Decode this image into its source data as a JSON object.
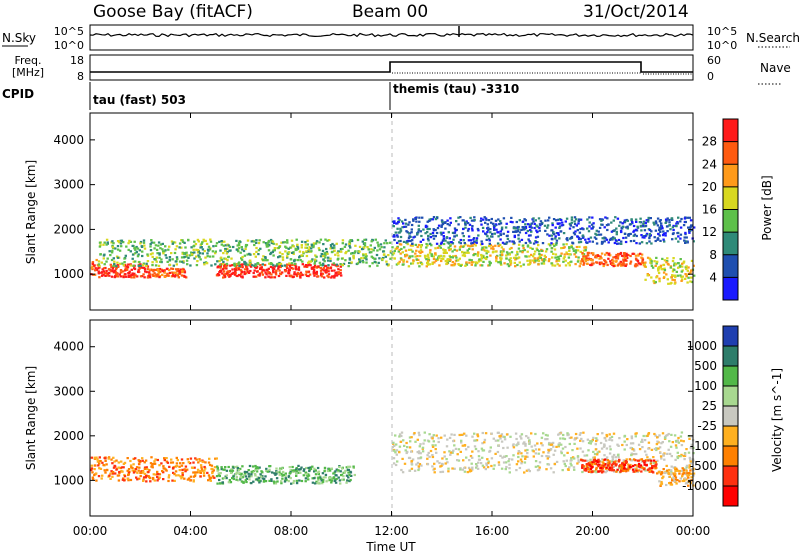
{
  "header": {
    "station": "Goose Bay (fitACF)",
    "beam": "Beam 00",
    "date": "31/Oct/2014"
  },
  "panels": {
    "sky_label": "N.Sky",
    "search_label": "N.Search",
    "freq_label_1": "Freq.",
    "freq_label_2": "[MHz]",
    "nave_label": "Nave",
    "cpid_label": "CPID",
    "sky_tick_hi": "10^5",
    "sky_tick_lo": "10^0",
    "freq_tick_hi": "18",
    "freq_tick_lo": "8",
    "nave_tick_hi": "60",
    "nave_tick_lo": "0",
    "cpid_1": "tau (fast) 503",
    "cpid_2": "themis (tau) -3310"
  },
  "chart_data": [
    {
      "type": "heatmap",
      "title": "",
      "ylabel": "Slant Range [km]",
      "ylim": [
        200,
        4600
      ],
      "yticks": [
        "1000",
        "2000",
        "3000",
        "4000"
      ],
      "colorbar_label": "Power [dB]",
      "colorbar_ticks": [
        "4",
        "8",
        "12",
        "16",
        "20",
        "24",
        "28"
      ],
      "colorbar_colors": [
        "#1a1aff",
        "#1f4fb0",
        "#2f8a78",
        "#5ec04a",
        "#d8d820",
        "#ff9a1a",
        "#ff5a10",
        "#ff1a1a"
      ],
      "scatter_bands": [
        {
          "t0": 0.0,
          "t1": 0.3,
          "r0": 1000,
          "r1": 1400,
          "level": 6
        },
        {
          "t0": 0.3,
          "t1": 2.3,
          "r0": 950,
          "r1": 1250,
          "level": 7
        },
        {
          "t0": 2.3,
          "t1": 3.8,
          "r0": 950,
          "r1": 1150,
          "level": 6
        },
        {
          "t0": 5.0,
          "t1": 10.0,
          "r0": 950,
          "r1": 1250,
          "level": 7
        },
        {
          "t0": 0.3,
          "t1": 12.0,
          "r0": 1200,
          "r1": 1800,
          "level": 3
        },
        {
          "t0": 12.0,
          "t1": 19.7,
          "r0": 1200,
          "r1": 1700,
          "level": 4
        },
        {
          "t0": 12.0,
          "t1": 24.0,
          "r0": 1700,
          "r1": 2300,
          "level": 1
        },
        {
          "t0": 19.5,
          "t1": 22.0,
          "r0": 1200,
          "r1": 1500,
          "level": 6
        },
        {
          "t0": 22.0,
          "t1": 24.0,
          "r0": 800,
          "r1": 1400,
          "level": 4
        }
      ]
    },
    {
      "type": "heatmap",
      "title": "",
      "xlabel": "Time UT",
      "ylabel": "Slant Range [km]",
      "ylim": [
        200,
        4600
      ],
      "xlim": [
        0,
        24
      ],
      "xticks": [
        "00:00",
        "04:00",
        "08:00",
        "12:00",
        "16:00",
        "20:00",
        "00:00"
      ],
      "yticks": [
        "1000",
        "2000",
        "3000",
        "4000"
      ],
      "colorbar_label": "Velocity [m s^-1]",
      "colorbar_ticks": [
        "1000",
        "500",
        "100",
        "25",
        "-25",
        "-100",
        "-500",
        "-1000"
      ],
      "colorbar_colors": [
        "#1f3fb0",
        "#2e7d6a",
        "#52b848",
        "#a8d890",
        "#c8c8c0",
        "#ffb020",
        "#ff8000",
        "#ff3010",
        "#ff0000"
      ],
      "scatter_bands": [
        {
          "t0": 0.0,
          "t1": 5.0,
          "r0": 1000,
          "r1": 1550,
          "level": 6
        },
        {
          "t0": 5.0,
          "t1": 10.5,
          "r0": 950,
          "r1": 1350,
          "level": 2
        },
        {
          "t0": 12.0,
          "t1": 24.0,
          "r0": 1200,
          "r1": 2100,
          "level": 4
        },
        {
          "t0": 19.5,
          "t1": 22.5,
          "r0": 1200,
          "r1": 1500,
          "level": 7
        },
        {
          "t0": 22.5,
          "t1": 24.0,
          "r0": 900,
          "r1": 1300,
          "level": 5
        }
      ]
    }
  ]
}
